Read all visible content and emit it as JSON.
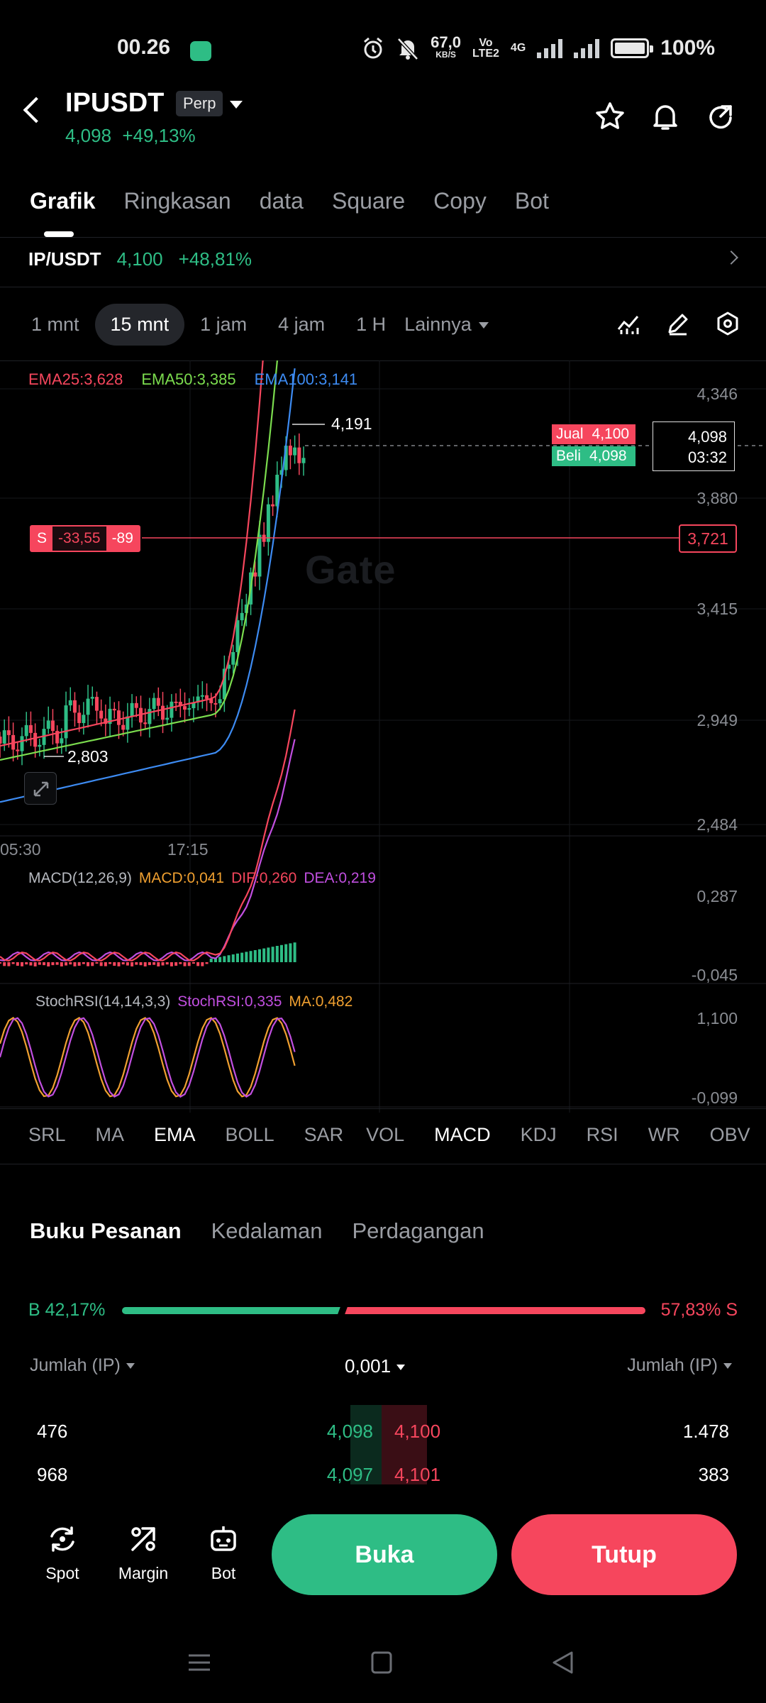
{
  "status": {
    "time": "00.26",
    "net_speed": "67,0",
    "net_unit": "KB/S",
    "volte": "Vo",
    "lte": "LTE2",
    "net_type": "4G",
    "battery": "100%"
  },
  "header": {
    "symbol": "IPUSDT",
    "badge": "Perp",
    "price": "4,098",
    "change": "+49,13%"
  },
  "tabs": [
    {
      "label": "Grafik",
      "active": true
    },
    {
      "label": "Ringkasan",
      "active": false
    },
    {
      "label": "data",
      "active": false
    },
    {
      "label": "Square",
      "active": false
    },
    {
      "label": "Copy",
      "active": false
    },
    {
      "label": "Bot",
      "active": false
    }
  ],
  "ticker": {
    "pair": "IP/USDT",
    "price": "4,100",
    "change": "+48,81%"
  },
  "intervals": {
    "items": [
      "1 mnt",
      "15 mnt",
      "1 jam",
      "4 jam",
      "1 H"
    ],
    "active": "15 mnt",
    "more": "Lainnya"
  },
  "chart_data": {
    "type": "candlestick",
    "legend": {
      "ema25": "EMA25:3,628",
      "ema50": "EMA50:3,385",
      "ema100": "EMA100:3,141"
    },
    "y_ticks": [
      "4,346",
      "3,880",
      "3,415",
      "2,949",
      "2,484"
    ],
    "y_range": [
      2484,
      4346
    ],
    "x_ticks": [
      "05:30",
      "17:15"
    ],
    "high_label": "4,191",
    "low_label": "2,803",
    "sell_label": "Jual",
    "sell_price": "4,100",
    "buy_label": "Beli",
    "buy_price": "4,098",
    "current_price": "4,098",
    "countdown": "03:32",
    "position": {
      "side": "S",
      "pnl": "-33,55",
      "qty": "-89",
      "entry": "3,721"
    },
    "watermark": "Gate",
    "colors": {
      "up": "#2ebd85",
      "down": "#f6465d",
      "ema25": "#f6465d",
      "ema50": "#7bdc4e",
      "ema100": "#3d8bf2"
    },
    "macd": {
      "title": "MACD(12,26,9)",
      "macd": "MACD:0,041",
      "dif": "DIF:0,260",
      "dea": "DEA:0,219",
      "y_ticks": [
        "0,287",
        "-0,045"
      ]
    },
    "stochrsi": {
      "title": "StochRSI(14,14,3,3)",
      "value": "StochRSI:0,335",
      "ma": "MA:0,482",
      "y_ticks": [
        "1,100",
        "-0,099"
      ]
    }
  },
  "indicators": {
    "main": [
      "SRL",
      "MA",
      "EMA",
      "BOLL",
      "SAR"
    ],
    "main_active": "EMA",
    "sub": [
      "VOL",
      "MACD",
      "KDJ",
      "RSI",
      "WR",
      "OBV"
    ],
    "sub_active": "MACD"
  },
  "orderbook": {
    "tabs": [
      "Buku Pesanan",
      "Kedalaman",
      "Perdagangan"
    ],
    "buy_ratio": "B 42,17%",
    "sell_ratio": "57,83% S",
    "buy_fraction": 0.4217,
    "col_left": "Jumlah (IP)",
    "precision": "0,001",
    "col_right": "Jumlah (IP)",
    "rows": [
      {
        "bid_qty": "476",
        "bid": "4,098",
        "ask": "4,100",
        "ask_qty": "1.478"
      },
      {
        "bid_qty": "968",
        "bid": "4,097",
        "ask": "4,101",
        "ask_qty": "383"
      }
    ]
  },
  "bottom": {
    "spot": "Spot",
    "margin": "Margin",
    "bot": "Bot",
    "open": "Buka",
    "close": "Tutup"
  }
}
